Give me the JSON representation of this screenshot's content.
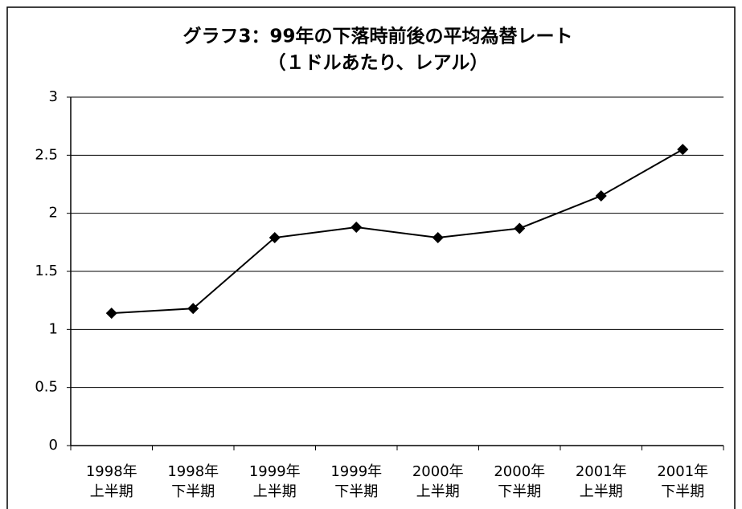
{
  "chart_data": {
    "type": "line",
    "title": [
      "グラフ3：99年の下落時前後の平均為替レート",
      "（１ドルあたり、レアル）"
    ],
    "categories": [
      [
        "1998年",
        "上半期"
      ],
      [
        "1998年",
        "下半期"
      ],
      [
        "1999年",
        "上半期"
      ],
      [
        "1999年",
        "下半期"
      ],
      [
        "2000年",
        "上半期"
      ],
      [
        "2000年",
        "下半期"
      ],
      [
        "2001年",
        "上半期"
      ],
      [
        "2001年",
        "下半期"
      ]
    ],
    "values": [
      1.14,
      1.18,
      1.79,
      1.88,
      1.79,
      1.87,
      2.15,
      2.55
    ],
    "color": "#000000",
    "ylim": [
      0,
      3
    ],
    "yticks": [
      0,
      0.5,
      1,
      1.5,
      2,
      2.5,
      3
    ],
    "grid": true
  }
}
